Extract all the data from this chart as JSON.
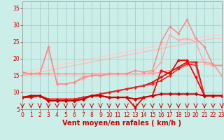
{
  "background_color": "#cceee8",
  "grid_color": "#aacccc",
  "x_min": 0,
  "x_max": 23,
  "y_min": 5,
  "y_max": 37,
  "yticks": [
    5,
    10,
    15,
    20,
    25,
    30,
    35
  ],
  "xticks": [
    0,
    1,
    2,
    3,
    4,
    5,
    6,
    7,
    8,
    9,
    10,
    11,
    12,
    13,
    14,
    15,
    16,
    17,
    18,
    19,
    20,
    21,
    22,
    23
  ],
  "xlabel": "Vent moyen/en rafales ( km/h )",
  "series": [
    {
      "x": [
        0,
        1,
        2,
        3,
        4,
        5,
        6,
        7,
        8,
        9,
        10,
        11,
        12,
        13,
        14,
        15,
        16,
        17,
        18,
        19,
        20,
        21,
        22,
        23
      ],
      "y": [
        16.0,
        16.5,
        17.0,
        17.5,
        18.0,
        18.5,
        19.0,
        19.5,
        20.0,
        20.5,
        21.0,
        21.5,
        22.0,
        22.5,
        23.0,
        23.5,
        24.0,
        24.5,
        25.0,
        25.5,
        26.0,
        26.5,
        27.0,
        27.0
      ],
      "color": "#ffcccc",
      "lw": 1.0,
      "marker": null,
      "ms": 0,
      "zorder": 1
    },
    {
      "x": [
        0,
        1,
        2,
        3,
        4,
        5,
        6,
        7,
        8,
        9,
        10,
        11,
        12,
        13,
        14,
        15,
        16,
        17,
        18,
        19,
        20,
        21,
        22,
        23
      ],
      "y": [
        15.0,
        15.5,
        16.0,
        16.5,
        17.0,
        17.5,
        18.0,
        18.5,
        19.0,
        19.5,
        20.0,
        20.5,
        21.0,
        21.5,
        22.0,
        22.5,
        23.0,
        23.5,
        24.0,
        24.5,
        25.0,
        25.5,
        26.0,
        26.0
      ],
      "color": "#ffbbbb",
      "lw": 1.0,
      "marker": null,
      "ms": 0,
      "zorder": 1
    },
    {
      "x": [
        0,
        1,
        2,
        3,
        4,
        5,
        6,
        7,
        8,
        9,
        10,
        11,
        12,
        13,
        14,
        15,
        16,
        17,
        18,
        19,
        20,
        21,
        22,
        23
      ],
      "y": [
        15.5,
        15.5,
        15.5,
        15.5,
        15.5,
        15.5,
        15.5,
        15.5,
        15.5,
        15.5,
        15.5,
        15.5,
        15.5,
        15.5,
        15.5,
        15.5,
        16.0,
        16.5,
        17.0,
        18.0,
        19.0,
        19.0,
        18.5,
        15.0
      ],
      "color": "#ff9999",
      "lw": 1.2,
      "marker": "D",
      "ms": 2.0,
      "zorder": 2
    },
    {
      "x": [
        0,
        1,
        2,
        3,
        4,
        5,
        6,
        7,
        8,
        9,
        10,
        11,
        12,
        13,
        14,
        15,
        16,
        17,
        18,
        19,
        20,
        21,
        22,
        23
      ],
      "y": [
        15.5,
        15.5,
        15.5,
        23.0,
        12.5,
        12.5,
        13.0,
        14.0,
        15.0,
        15.5,
        15.5,
        15.5,
        15.5,
        15.5,
        15.5,
        16.0,
        19.0,
        27.0,
        25.5,
        26.0,
        25.0,
        18.5,
        18.0,
        18.0
      ],
      "color": "#ffaaaa",
      "lw": 1.1,
      "marker": "D",
      "ms": 2.0,
      "zorder": 2
    },
    {
      "x": [
        0,
        1,
        2,
        3,
        4,
        5,
        6,
        7,
        8,
        9,
        10,
        11,
        12,
        13,
        14,
        15,
        16,
        17,
        18,
        19,
        20,
        21,
        22,
        23
      ],
      "y": [
        16.0,
        15.5,
        15.5,
        23.5,
        12.5,
        12.5,
        13.0,
        14.5,
        15.0,
        15.0,
        15.5,
        15.5,
        15.5,
        16.5,
        16.0,
        16.5,
        25.0,
        29.5,
        27.5,
        31.5,
        26.0,
        23.5,
        18.0,
        18.0
      ],
      "color": "#ff8888",
      "lw": 1.1,
      "marker": "D",
      "ms": 2.0,
      "zorder": 2
    },
    {
      "x": [
        0,
        1,
        2,
        3,
        4,
        5,
        6,
        7,
        8,
        9,
        10,
        11,
        12,
        13,
        14,
        15,
        16,
        17,
        18,
        19,
        20,
        21,
        22,
        23
      ],
      "y": [
        8.5,
        9.0,
        9.0,
        7.5,
        7.5,
        7.5,
        7.5,
        8.0,
        9.0,
        9.0,
        8.5,
        8.5,
        8.5,
        8.0,
        8.5,
        9.0,
        9.5,
        9.5,
        9.5,
        9.5,
        9.5,
        9.0,
        9.0,
        9.0
      ],
      "color": "#cc0000",
      "lw": 1.5,
      "marker": "D",
      "ms": 2.5,
      "zorder": 4
    },
    {
      "x": [
        0,
        1,
        2,
        3,
        4,
        5,
        6,
        7,
        8,
        9,
        10,
        11,
        12,
        13,
        14,
        15,
        16,
        17,
        18,
        19,
        20,
        21,
        22,
        23
      ],
      "y": [
        8.5,
        8.5,
        9.0,
        8.0,
        8.0,
        8.0,
        8.0,
        8.5,
        9.0,
        9.5,
        10.0,
        10.5,
        11.0,
        11.5,
        12.0,
        13.0,
        14.5,
        16.0,
        17.5,
        19.0,
        19.0,
        9.0,
        9.0,
        9.0
      ],
      "color": "#dd1111",
      "lw": 1.3,
      "marker": "D",
      "ms": 2.2,
      "zorder": 3
    },
    {
      "x": [
        0,
        1,
        2,
        3,
        4,
        5,
        6,
        7,
        8,
        9,
        10,
        11,
        12,
        13,
        14,
        15,
        16,
        17,
        18,
        19,
        20,
        21,
        22,
        23
      ],
      "y": [
        8.5,
        8.5,
        9.0,
        8.0,
        8.0,
        8.0,
        8.0,
        8.5,
        9.0,
        9.5,
        10.0,
        10.5,
        11.0,
        11.5,
        12.0,
        12.5,
        13.5,
        15.0,
        17.0,
        18.5,
        18.0,
        9.0,
        9.0,
        9.0
      ],
      "color": "#ee2222",
      "lw": 1.1,
      "marker": "D",
      "ms": 2.0,
      "zorder": 3
    },
    {
      "x": [
        0,
        1,
        2,
        3,
        4,
        5,
        6,
        7,
        8,
        9,
        10,
        11,
        12,
        13,
        14,
        15,
        16,
        17,
        18,
        19,
        20,
        21,
        22,
        23
      ],
      "y": [
        8.5,
        9.0,
        9.0,
        7.5,
        7.5,
        7.5,
        7.5,
        8.0,
        9.0,
        9.0,
        8.5,
        8.5,
        8.5,
        5.5,
        8.5,
        9.0,
        16.5,
        15.5,
        19.5,
        19.5,
        14.5,
        9.0,
        9.0,
        9.0
      ],
      "color": "#ff0000",
      "lw": 1.3,
      "marker": "D",
      "ms": 2.2,
      "zorder": 3
    }
  ],
  "wind_arrows": {
    "x": [
      0,
      1,
      2,
      3,
      4,
      5,
      6,
      7,
      8,
      9,
      10,
      11,
      12,
      13,
      14,
      15,
      16,
      17,
      18,
      19,
      20,
      21,
      22,
      23
    ],
    "y_tip": 5.3,
    "y_tail": 6.2,
    "color": "#cc0000",
    "lw": 0.7
  },
  "axis_fontsize": 7,
  "tick_fontsize": 5.5
}
